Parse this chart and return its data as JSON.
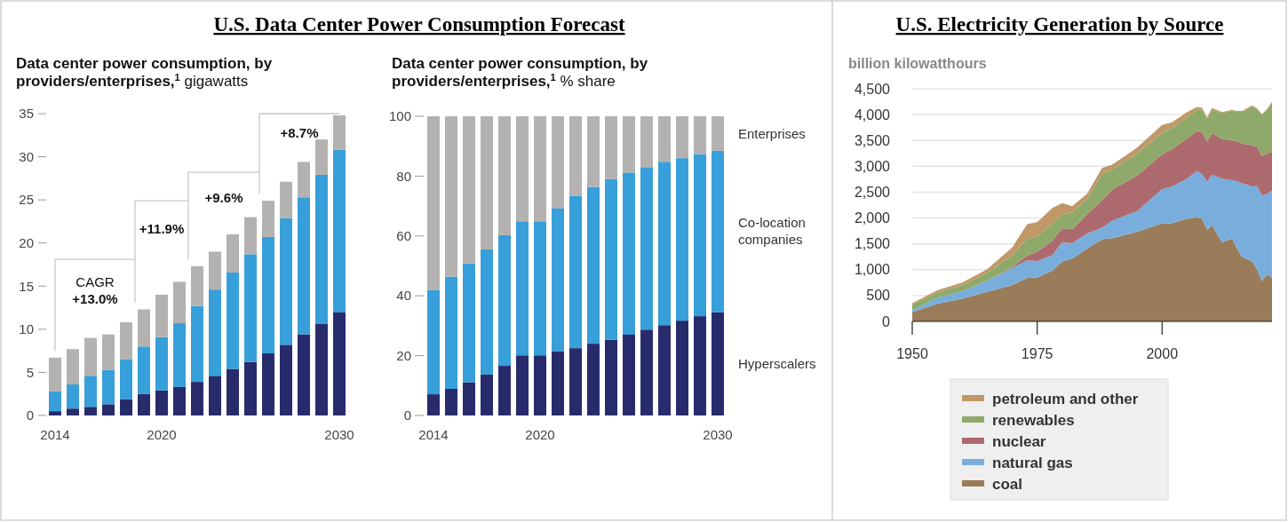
{
  "chart_data": [
    {
      "type": "bar",
      "stacked": true,
      "title": "U.S. Data Center Power Consumption Forecast",
      "subtitle": "Data center power consumption, by providers/enterprises,$^{1}$ gigawatts",
      "categories": [
        "2014",
        null,
        null,
        null,
        null,
        null,
        "2020",
        null,
        null,
        null,
        null,
        null,
        null,
        null,
        null,
        null,
        "2030"
      ],
      "series": [
        {
          "color": "#282b6b",
          "values": [
            0.5,
            0.8,
            1.0,
            1.3,
            1.9,
            2.5,
            2.9,
            3.3,
            3.9,
            4.6,
            5.4,
            6.2,
            7.2,
            8.2,
            9.4,
            10.6,
            12.0
          ]
        },
        {
          "color": "#379fd9",
          "values": [
            2.3,
            2.8,
            3.6,
            4.0,
            4.6,
            5.5,
            6.2,
            7.4,
            8.8,
            10.0,
            11.2,
            12.5,
            13.5,
            14.7,
            15.9,
            17.3,
            18.8
          ]
        },
        {
          "color": "#b3b2b1",
          "values": [
            3.9,
            4.1,
            4.4,
            4.1,
            4.3,
            4.3,
            4.9,
            4.8,
            4.6,
            4.4,
            4.4,
            4.3,
            4.2,
            4.2,
            4.1,
            4.1,
            4.0
          ]
        }
      ],
      "ylim": [
        0,
        35
      ],
      "yticks": [
        0,
        5,
        10,
        15,
        20,
        25,
        30,
        35
      ],
      "annotations": [
        "CAGR",
        "+13.0%",
        "+11.9%",
        "+9.6%",
        "+8.7%"
      ]
    },
    {
      "type": "bar",
      "stacked": true,
      "subtitle": "Data center power consumption, by providers/enterprises,$^{1}$ % share",
      "categories": [
        "2014",
        null,
        null,
        null,
        null,
        null,
        "2020",
        null,
        null,
        null,
        null,
        null,
        null,
        null,
        null,
        null,
        "2030"
      ],
      "series": [
        {
          "name": "Hyperscalers",
          "color": "#282b6b",
          "values": [
            7.1,
            8.9,
            11.1,
            13.7,
            16.6,
            20.1,
            20.1,
            21.5,
            22.5,
            24.0,
            25.3,
            27.0,
            28.7,
            30.2,
            31.7,
            33.2,
            34.5
          ]
        },
        {
          "name": "Co-location companies",
          "color": "#379fd9",
          "values": [
            34.9,
            37.5,
            39.7,
            41.8,
            43.7,
            44.8,
            44.8,
            47.8,
            50.9,
            52.4,
            53.7,
            54.2,
            54.3,
            54.6,
            54.3,
            54.2,
            54.0
          ]
        },
        {
          "name": "Enterprises",
          "color": "#b3b2b1",
          "values": [
            58.0,
            53.6,
            49.2,
            44.5,
            39.7,
            35.1,
            35.1,
            30.7,
            26.6,
            23.6,
            21.0,
            18.8,
            17.0,
            15.2,
            14.0,
            12.6,
            11.5
          ]
        }
      ],
      "ylim": [
        0,
        100
      ],
      "yticks": [
        0,
        20,
        40,
        60,
        80,
        100
      ]
    },
    {
      "type": "area",
      "stacked": true,
      "title": "U.S. Electricity Generation by Source",
      "ylabel": "billion kilowatthours",
      "x": [
        1950,
        1955,
        1960,
        1965,
        1970,
        1973,
        1975,
        1978,
        1980,
        1982,
        1985,
        1988,
        1990,
        1995,
        2000,
        2002,
        2005,
        2007,
        2008,
        2009,
        2010,
        2012,
        2014,
        2015,
        2016,
        2018,
        2019,
        2020,
        2021,
        2022
      ],
      "series": [
        {
          "name": "coal",
          "color": "#9a7b5a",
          "values": [
            180,
            340,
            440,
            570,
            700,
            840,
            850,
            980,
            1160,
            1210,
            1410,
            1590,
            1610,
            1730,
            1900,
            1900,
            1990,
            2010,
            1990,
            1770,
            1860,
            1530,
            1600,
            1410,
            1250,
            1160,
            1010,
            780,
            910,
            840
          ]
        },
        {
          "name": "natural gas",
          "color": "#79aedc",
          "values": [
            40,
            120,
            140,
            220,
            330,
            340,
            320,
            300,
            370,
            300,
            290,
            220,
            340,
            400,
            660,
            710,
            770,
            900,
            860,
            930,
            980,
            1230,
            1130,
            1300,
            1420,
            1450,
            1610,
            1650,
            1560,
            1690
          ]
        },
        {
          "name": "nuclear",
          "color": "#ad6a6e",
          "values": [
            0,
            0,
            0,
            0,
            20,
            90,
            180,
            280,
            270,
            270,
            380,
            530,
            600,
            690,
            670,
            720,
            780,
            780,
            810,
            780,
            800,
            770,
            770,
            780,
            770,
            800,
            760,
            770,
            780,
            750
          ]
        },
        {
          "name": "renewables",
          "color": "#8fa96b",
          "values": [
            110,
            100,
            120,
            150,
            230,
            330,
            300,
            330,
            280,
            330,
            290,
            520,
            390,
            430,
            420,
            410,
            410,
            400,
            430,
            440,
            460,
            500,
            570,
            560,
            610,
            750,
            720,
            790,
            840,
            950
          ]
        },
        {
          "name": "petroleum and other",
          "color": "#c09868",
          "values": [
            20,
            40,
            50,
            70,
            150,
            280,
            270,
            300,
            210,
            120,
            100,
            110,
            90,
            110,
            150,
            110,
            100,
            60,
            40,
            30,
            30,
            20,
            20,
            20,
            20,
            20,
            20,
            20,
            20,
            20
          ]
        }
      ],
      "xlim": [
        1950,
        2022
      ],
      "xticks": [
        1950,
        1975,
        2000
      ],
      "ylim": [
        0,
        4500
      ],
      "yticks": [
        0,
        500,
        {
          "value": 1000,
          "label": "1,000"
        },
        {
          "value": 1500,
          "label": "1,500"
        },
        {
          "value": 2000,
          "label": "2,000"
        },
        {
          "value": 2500,
          "label": "2,500"
        },
        {
          "value": 3000,
          "label": "3,000"
        },
        {
          "value": 3500,
          "label": "3,500"
        },
        {
          "value": 4000,
          "label": "4,000"
        },
        {
          "value": 4500,
          "label": "4,500"
        }
      ],
      "grid": "y",
      "legend": "bottom"
    }
  ]
}
